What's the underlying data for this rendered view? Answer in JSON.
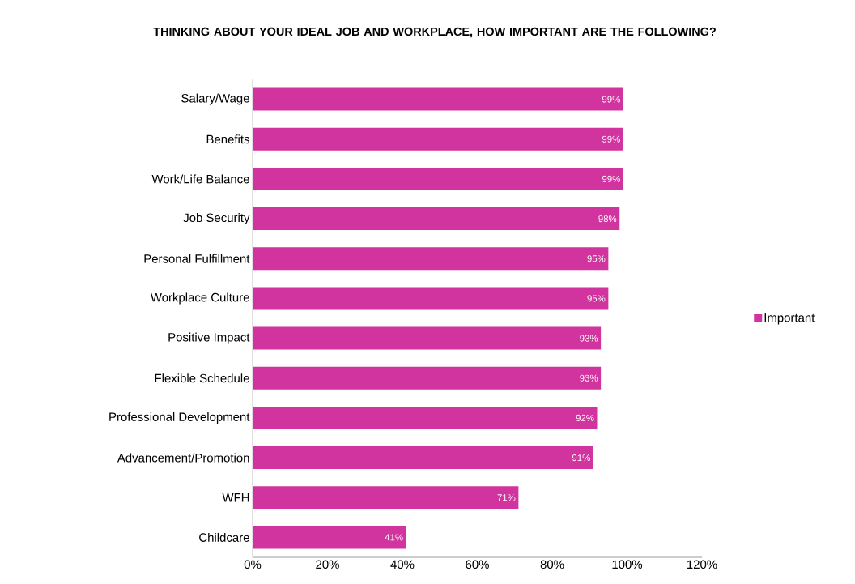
{
  "chart_data": {
    "type": "bar",
    "orientation": "horizontal",
    "title": "THINKING ABOUT YOUR IDEAL JOB AND WORKPLACE, HOW IMPORTANT ARE THE FOLLOWING?",
    "categories": [
      "Salary/Wage",
      "Benefits",
      "Work/Life Balance",
      "Job Security",
      "Personal Fulfillment",
      "Workplace Culture",
      "Positive Impact",
      "Flexible Schedule",
      "Professional Development",
      "Advancement/Promotion",
      "WFH",
      "Childcare"
    ],
    "series": [
      {
        "name": "Important",
        "color": "#d1349f",
        "values": [
          99,
          99,
          99,
          98,
          95,
          95,
          93,
          93,
          92,
          91,
          71,
          41
        ],
        "value_labels": [
          "99%",
          "99%",
          "99%",
          "98%",
          "95%",
          "95%",
          "93%",
          "93%",
          "92%",
          "91%",
          "71%",
          "41%"
        ]
      }
    ],
    "xlim": [
      0,
      120
    ],
    "xticks": [
      {
        "value": 0,
        "label": "0%"
      },
      {
        "value": 20,
        "label": "20%"
      },
      {
        "value": 40,
        "label": "40%"
      },
      {
        "value": 60,
        "label": "60%"
      },
      {
        "value": 80,
        "label": "80%"
      },
      {
        "value": 100,
        "label": "100%"
      },
      {
        "value": 120,
        "label": "120%"
      }
    ],
    "grid": false,
    "legend": "right"
  }
}
